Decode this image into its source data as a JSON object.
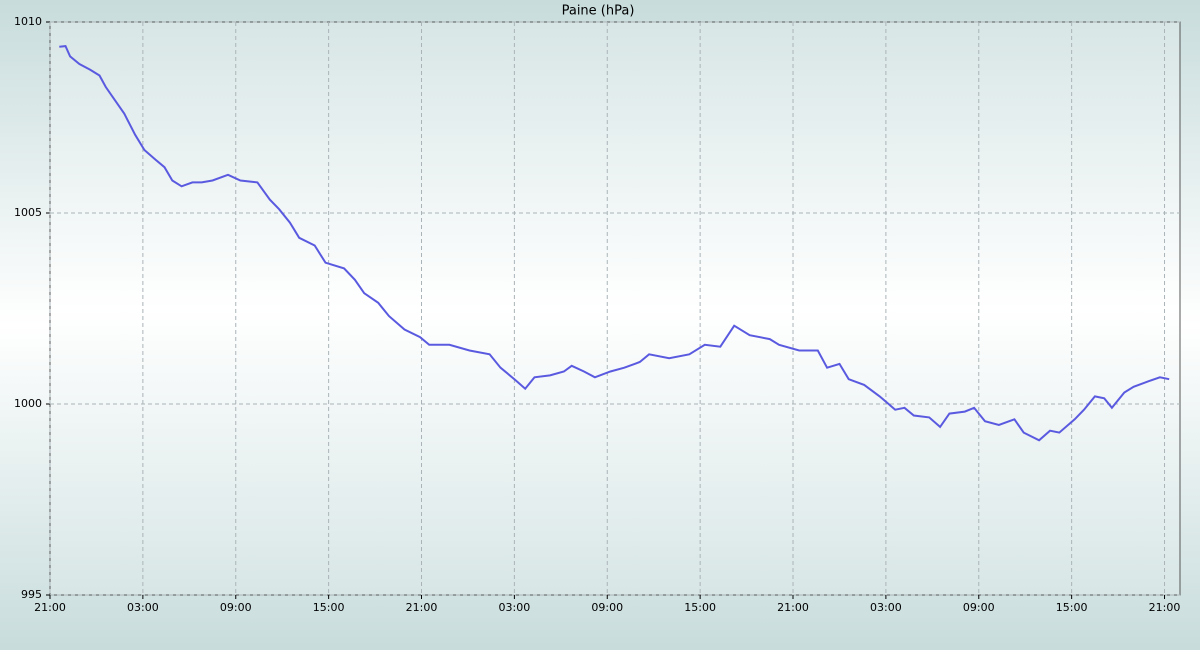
{
  "chart_data": {
    "type": "line",
    "title": "Paine (hPa)",
    "x": [
      0.6,
      1.0,
      1.3,
      1.9,
      2.6,
      3.2,
      3.6,
      4.2,
      4.8,
      5.5,
      6.1,
      6.8,
      7.4,
      7.9,
      8.5,
      9.2,
      9.8,
      10.5,
      11.5,
      12.3,
      13.4,
      14.2,
      14.8,
      15.5,
      16.1,
      17.1,
      17.8,
      19.0,
      19.7,
      20.3,
      21.2,
      21.9,
      22.9,
      23.9,
      24.5,
      25.8,
      27.1,
      28.4,
      29.1,
      30.0,
      30.7,
      31.3,
      32.3,
      33.2,
      33.7,
      34.5,
      35.2,
      36.2,
      37.1,
      38.1,
      38.7,
      40.0,
      41.3,
      42.3,
      43.3,
      44.2,
      45.2,
      46.5,
      47.1,
      48.4,
      49.6,
      50.2,
      51.0,
      51.6,
      52.6,
      53.6,
      54.6,
      55.2,
      55.8,
      56.8,
      57.5,
      58.1,
      59.1,
      59.7,
      60.4,
      61.3,
      62.3,
      62.9,
      63.9,
      64.6,
      65.2,
      66.2,
      66.8,
      67.5,
      68.1,
      68.6,
      69.4,
      70.0,
      71.0,
      71.7,
      72.3
    ],
    "series": [
      {
        "name": "Paine",
        "color": "#5a5ae0",
        "values": [
          1009.35,
          1009.37,
          1009.1,
          1008.9,
          1008.75,
          1008.6,
          1008.3,
          1007.95,
          1007.6,
          1007.05,
          1006.65,
          1006.4,
          1006.2,
          1005.85,
          1005.7,
          1005.8,
          1005.8,
          1005.85,
          1006.0,
          1005.85,
          1005.8,
          1005.35,
          1005.1,
          1004.75,
          1004.35,
          1004.15,
          1003.7,
          1003.55,
          1003.25,
          1002.9,
          1002.65,
          1002.3,
          1001.95,
          1001.75,
          1001.55,
          1001.55,
          1001.4,
          1001.3,
          1000.95,
          1000.65,
          1000.4,
          1000.7,
          1000.75,
          1000.85,
          1001.0,
          1000.85,
          1000.7,
          1000.85,
          1000.95,
          1001.1,
          1001.3,
          1001.2,
          1001.3,
          1001.55,
          1001.5,
          1002.05,
          1001.8,
          1001.7,
          1001.55,
          1001.4,
          1001.4,
          1000.95,
          1001.05,
          1000.65,
          1000.5,
          1000.2,
          999.85,
          999.9,
          999.7,
          999.65,
          999.4,
          999.75,
          999.8,
          999.9,
          999.55,
          999.45,
          999.6,
          999.25,
          999.05,
          999.3,
          999.25,
          999.6,
          999.85,
          1000.2,
          1000.15,
          999.9,
          1000.3,
          1000.45,
          1000.6,
          1000.7,
          1000.65
        ]
      }
    ],
    "xlim": [
      0,
      73
    ],
    "xticks": [
      {
        "value": 0,
        "label": "21:00"
      },
      {
        "value": 6,
        "label": "03:00"
      },
      {
        "value": 12,
        "label": "09:00"
      },
      {
        "value": 18,
        "label": "15:00"
      },
      {
        "value": 24,
        "label": "21:00"
      },
      {
        "value": 30,
        "label": "03:00"
      },
      {
        "value": 36,
        "label": "09:00"
      },
      {
        "value": 42,
        "label": "15:00"
      },
      {
        "value": 48,
        "label": "21:00"
      },
      {
        "value": 54,
        "label": "03:00"
      },
      {
        "value": 60,
        "label": "09:00"
      },
      {
        "value": 66,
        "label": "15:00"
      },
      {
        "value": 72,
        "label": "21:00"
      }
    ],
    "ylim": [
      995,
      1010
    ],
    "yticks": [
      995,
      1000,
      1005,
      1010
    ],
    "grid": true
  }
}
